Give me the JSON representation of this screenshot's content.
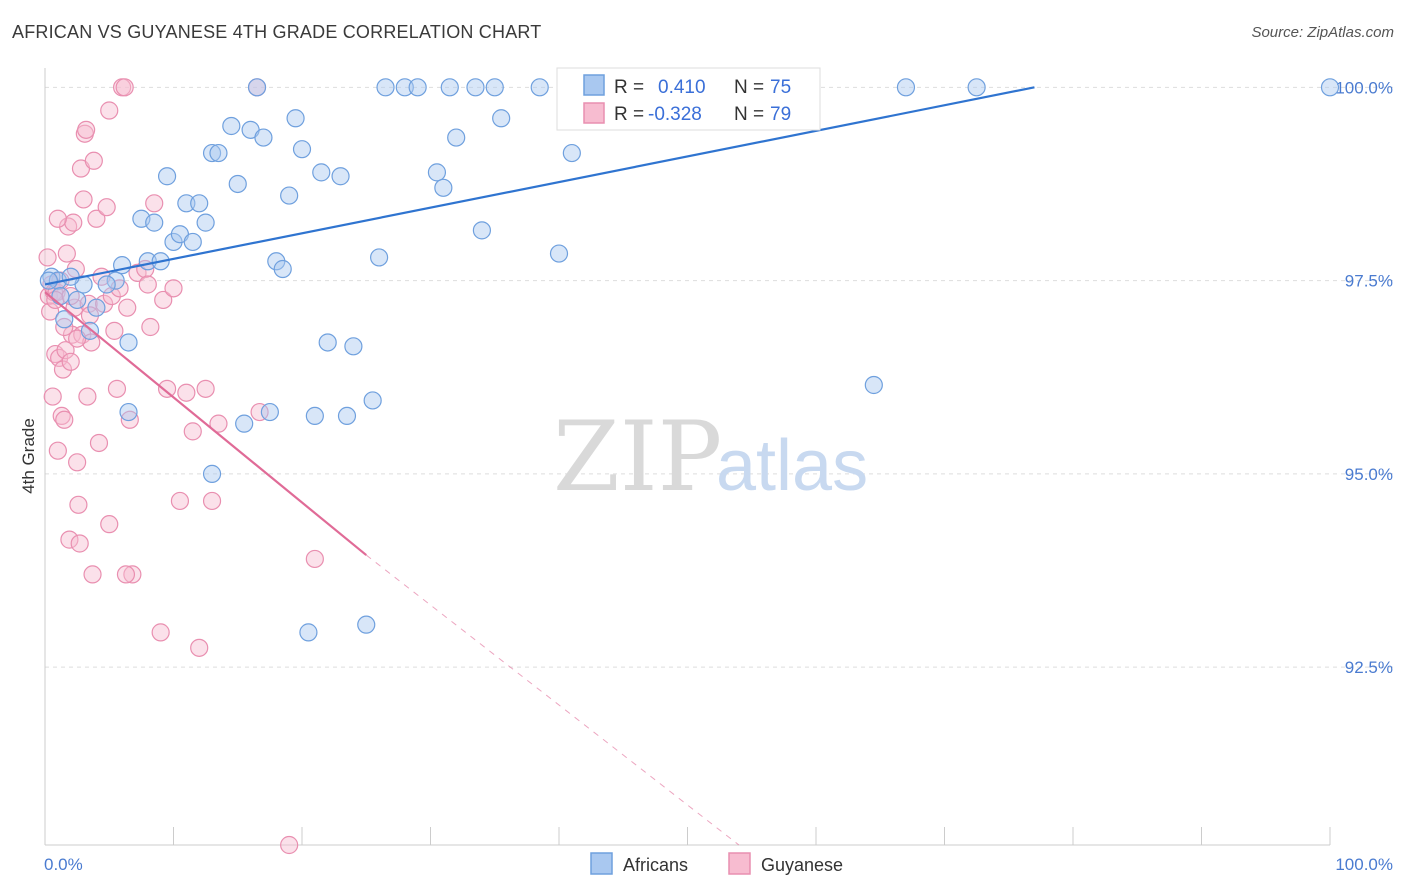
{
  "title": "AFRICAN VS GUYANESE 4TH GRADE CORRELATION CHART",
  "source": "Source: ZipAtlas.com",
  "watermark": {
    "zip": "ZIP",
    "atlas": "atlas"
  },
  "legend": {
    "rows": [
      {
        "r_label": "R =",
        "r_value": "0.410",
        "n_label": "N =",
        "n_value": "75"
      },
      {
        "r_label": "R =",
        "r_value": "-0.328",
        "n_label": "N =",
        "n_value": "79"
      }
    ]
  },
  "bottom_legend": [
    "Africans",
    "Guyanese"
  ],
  "colors": {
    "africans_fill": "#a9c8f0",
    "africans_stroke": "#6fa0de",
    "africans_line": "#2f74d0",
    "guyanese_fill": "#f7bcd0",
    "guyanese_stroke": "#e98fb0",
    "guyanese_line": "#e06b97",
    "grid": "#dddddd",
    "axis_label": "#4a7bd0"
  },
  "chart_data": {
    "type": "scatter",
    "title": "AFRICAN VS GUYANESE 4TH GRADE CORRELATION CHART",
    "xlabel": "",
    "ylabel": "4th Grade",
    "x_tick_labels": [
      "0.0%",
      "100.0%"
    ],
    "y_tick_labels": [
      "100.0%",
      "97.5%",
      "95.0%",
      "92.5%"
    ],
    "y_ticks": [
      100.0,
      97.5,
      95.0,
      92.5
    ],
    "xlim": [
      0,
      100
    ],
    "ylim": [
      90.2,
      100.25
    ],
    "grid": true,
    "legend_placement": "top-center",
    "series": [
      {
        "name": "Africans",
        "trend": {
          "x0": 0,
          "y0": 97.45,
          "x1": 77,
          "y1": 100.0
        },
        "points": [
          [
            0.5,
            97.55
          ],
          [
            1.0,
            97.5
          ],
          [
            1.5,
            97.0
          ],
          [
            2.5,
            97.25
          ],
          [
            3.0,
            97.45
          ],
          [
            3.5,
            96.85
          ],
          [
            4.0,
            97.15
          ],
          [
            5.5,
            97.5
          ],
          [
            6.0,
            97.7
          ],
          [
            6.5,
            95.8
          ],
          [
            6.5,
            96.7
          ],
          [
            7.5,
            98.3
          ],
          [
            8.0,
            97.75
          ],
          [
            8.5,
            98.25
          ],
          [
            9.0,
            97.75
          ],
          [
            9.5,
            98.85
          ],
          [
            10.0,
            98.0
          ],
          [
            10.5,
            98.1
          ],
          [
            11.0,
            98.5
          ],
          [
            11.5,
            98.0
          ],
          [
            12.0,
            98.5
          ],
          [
            12.5,
            98.25
          ],
          [
            13.0,
            99.15
          ],
          [
            13.5,
            99.15
          ],
          [
            13.0,
            95.0
          ],
          [
            14.5,
            99.5
          ],
          [
            15.0,
            98.75
          ],
          [
            15.5,
            95.65
          ],
          [
            16.0,
            99.45
          ],
          [
            16.5,
            100.0
          ],
          [
            17.0,
            99.35
          ],
          [
            17.5,
            95.8
          ],
          [
            18.0,
            97.75
          ],
          [
            18.5,
            97.65
          ],
          [
            19.0,
            98.6
          ],
          [
            19.5,
            99.6
          ],
          [
            20.0,
            99.2
          ],
          [
            20.5,
            92.95
          ],
          [
            21.0,
            95.75
          ],
          [
            21.5,
            98.9
          ],
          [
            22.0,
            96.7
          ],
          [
            23.0,
            98.85
          ],
          [
            23.5,
            95.75
          ],
          [
            24.0,
            96.65
          ],
          [
            25.0,
            93.05
          ],
          [
            25.5,
            95.95
          ],
          [
            26.0,
            97.8
          ],
          [
            26.5,
            100.0
          ],
          [
            28.0,
            100.0
          ],
          [
            29.0,
            100.0
          ],
          [
            30.5,
            98.9
          ],
          [
            31.0,
            98.7
          ],
          [
            31.5,
            100.0
          ],
          [
            32.0,
            99.35
          ],
          [
            33.5,
            100.0
          ],
          [
            34.0,
            98.15
          ],
          [
            35.0,
            100.0
          ],
          [
            35.5,
            99.6
          ],
          [
            38.5,
            100.0
          ],
          [
            40.0,
            97.85
          ],
          [
            41.0,
            99.15
          ],
          [
            42.0,
            100.0
          ],
          [
            44.0,
            100.0
          ],
          [
            44.5,
            100.0
          ],
          [
            46.0,
            100.0
          ],
          [
            57.0,
            100.0
          ],
          [
            59.0,
            100.0
          ],
          [
            64.5,
            96.15
          ],
          [
            67.0,
            100.0
          ],
          [
            72.5,
            100.0
          ],
          [
            100.0,
            100.0
          ],
          [
            0.3,
            97.5
          ],
          [
            1.2,
            97.3
          ],
          [
            2.0,
            97.55
          ],
          [
            4.8,
            97.45
          ]
        ]
      },
      {
        "name": "Guyanese",
        "trend": {
          "x0": 0,
          "y0": 97.35,
          "x1": 25,
          "y1": 93.95,
          "dash_to_x": 54,
          "dash_to_y": 90.2
        },
        "points": [
          [
            0.2,
            97.8
          ],
          [
            0.3,
            97.3
          ],
          [
            0.4,
            97.1
          ],
          [
            0.5,
            97.45
          ],
          [
            0.6,
            96.0
          ],
          [
            0.7,
            97.35
          ],
          [
            0.8,
            96.55
          ],
          [
            0.9,
            97.35
          ],
          [
            1.0,
            95.3
          ],
          [
            1.1,
            96.5
          ],
          [
            1.2,
            97.5
          ],
          [
            1.3,
            95.75
          ],
          [
            1.4,
            96.35
          ],
          [
            1.5,
            95.7
          ],
          [
            1.6,
            96.6
          ],
          [
            1.7,
            97.85
          ],
          [
            1.8,
            98.2
          ],
          [
            1.9,
            94.15
          ],
          [
            2.0,
            96.45
          ],
          [
            2.1,
            96.8
          ],
          [
            2.2,
            98.25
          ],
          [
            2.3,
            97.15
          ],
          [
            2.4,
            97.65
          ],
          [
            2.5,
            95.15
          ],
          [
            2.6,
            94.6
          ],
          [
            2.7,
            94.1
          ],
          [
            2.8,
            98.95
          ],
          [
            2.9,
            96.8
          ],
          [
            3.0,
            98.55
          ],
          [
            3.1,
            99.4
          ],
          [
            3.2,
            99.45
          ],
          [
            3.3,
            96.0
          ],
          [
            3.4,
            97.2
          ],
          [
            3.5,
            97.05
          ],
          [
            3.6,
            96.7
          ],
          [
            3.8,
            99.05
          ],
          [
            4.0,
            98.3
          ],
          [
            4.2,
            95.4
          ],
          [
            4.4,
            97.55
          ],
          [
            4.6,
            97.2
          ],
          [
            4.8,
            98.45
          ],
          [
            5.0,
            99.7
          ],
          [
            5.2,
            97.3
          ],
          [
            5.4,
            96.85
          ],
          [
            5.6,
            96.1
          ],
          [
            5.8,
            97.4
          ],
          [
            6.0,
            100.0
          ],
          [
            6.2,
            100.0
          ],
          [
            6.4,
            97.15
          ],
          [
            6.6,
            95.7
          ],
          [
            6.8,
            93.7
          ],
          [
            7.2,
            97.6
          ],
          [
            7.8,
            97.65
          ],
          [
            8.0,
            97.45
          ],
          [
            8.2,
            96.9
          ],
          [
            8.5,
            98.5
          ],
          [
            9.0,
            92.95
          ],
          [
            9.2,
            97.25
          ],
          [
            9.5,
            96.1
          ],
          [
            10.0,
            97.4
          ],
          [
            10.5,
            94.65
          ],
          [
            11.0,
            96.05
          ],
          [
            11.5,
            95.55
          ],
          [
            12.0,
            92.75
          ],
          [
            12.5,
            96.1
          ],
          [
            13.0,
            94.65
          ],
          [
            13.5,
            95.65
          ],
          [
            16.5,
            100.0
          ],
          [
            16.7,
            95.8
          ],
          [
            19.0,
            90.2
          ],
          [
            21.0,
            93.9
          ],
          [
            0.8,
            97.25
          ],
          [
            1.5,
            96.9
          ],
          [
            2.0,
            97.3
          ],
          [
            2.5,
            96.75
          ],
          [
            3.7,
            93.7
          ],
          [
            5.0,
            94.35
          ],
          [
            6.3,
            93.7
          ],
          [
            1.0,
            98.3
          ]
        ]
      }
    ]
  }
}
